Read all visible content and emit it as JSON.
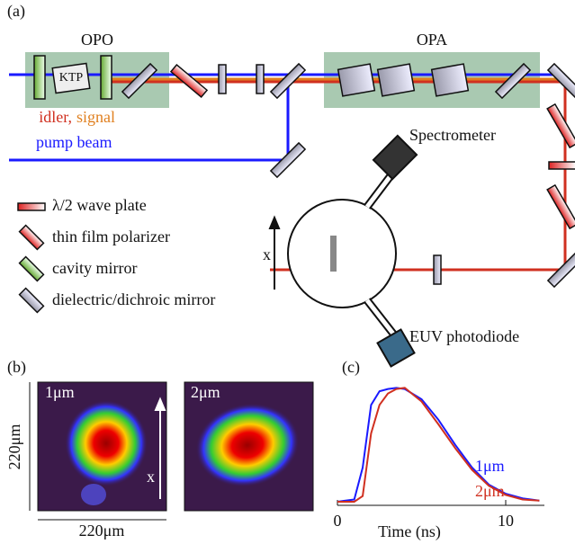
{
  "panel_a": {
    "label": "(a)",
    "opo": "OPO",
    "ktp": "KTP",
    "opa": "OPA",
    "idler": "idler,",
    "signal": "signal",
    "pump": "pump beam",
    "spectrometer": "Spectrometer",
    "photodiode": "EUV photodiode",
    "axis_x": "x",
    "legend": [
      "λ/2 wave plate",
      "thin film polarizer",
      "cavity mirror",
      "dielectric/dichroic mirror"
    ]
  },
  "panel_b": {
    "label": "(b)",
    "image_1": "1μm",
    "image_2": "2μm",
    "axis_x": "x",
    "height": "220μm",
    "width": "220μm"
  },
  "chart_data": {
    "type": "line",
    "label": "(c)",
    "xlabel": "Time (ns)",
    "xlim": [
      0,
      12.3
    ],
    "ylim": [
      0,
      1.05
    ],
    "xticks": [
      0,
      10
    ],
    "x": [
      0,
      1,
      1.5,
      2,
      2.5,
      3,
      3.5,
      4,
      5,
      6,
      7,
      8,
      9,
      10,
      11,
      12
    ],
    "series": [
      {
        "name": "1μm",
        "color": "#1a1aff",
        "values": [
          0,
          0.02,
          0.3,
          0.85,
          0.97,
          0.99,
          1.0,
          0.99,
          0.9,
          0.72,
          0.5,
          0.3,
          0.15,
          0.07,
          0.03,
          0.01
        ]
      },
      {
        "name": "2μm",
        "color": "#d03020",
        "values": [
          0,
          0,
          0.05,
          0.6,
          0.85,
          0.95,
          0.99,
          1.0,
          0.88,
          0.68,
          0.47,
          0.28,
          0.14,
          0.06,
          0.02,
          0.01
        ]
      }
    ]
  }
}
